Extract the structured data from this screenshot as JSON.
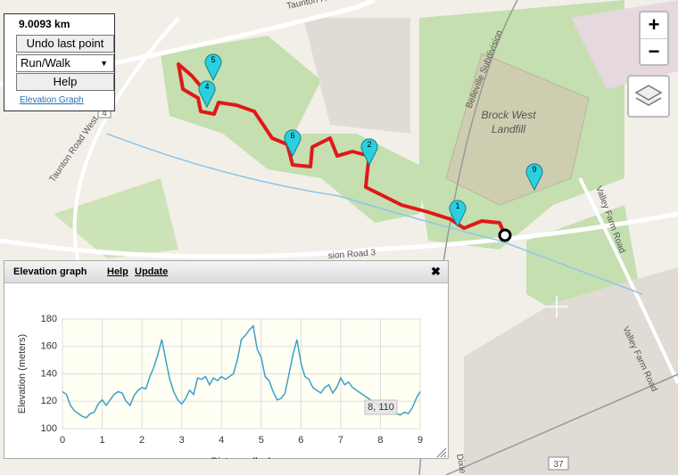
{
  "app": {
    "distance": "9.0093 km",
    "undo": "Undo last point",
    "mode": "Run/Walk",
    "help": "Help",
    "elevation_link": "Elevation Graph",
    "zoom_in": "+",
    "zoom_out": "−"
  },
  "map": {
    "labels": [
      "Taunton Road",
      "Taunton Road West",
      "Brock West",
      "Landfill",
      "Belleville Subdivision",
      "Valley Farm Road",
      "Valley Farm Road",
      "sion Road 3",
      "4",
      "37",
      "Dixie R"
    ],
    "markers": [
      "5",
      "4",
      "6",
      "2",
      "1",
      "9"
    ]
  },
  "panel": {
    "title": "Elevation graph",
    "help": "Help",
    "update": "Update",
    "close": "✖",
    "tooltip": "8, 110"
  },
  "chart_data": {
    "type": "line",
    "xlabel": "Distance (km)",
    "ylabel": "Elevation (meters)",
    "xlim": [
      0,
      9
    ],
    "xticks": [
      0,
      1,
      2,
      3,
      4,
      5,
      6,
      7,
      8,
      9
    ],
    "ylim": [
      100,
      180
    ],
    "yticks": [
      100,
      120,
      140,
      160,
      180
    ],
    "grid": true,
    "series": [
      {
        "name": "Elevation",
        "color": "#3ca0c8",
        "x": [
          0,
          0.1,
          0.2,
          0.3,
          0.4,
          0.5,
          0.6,
          0.7,
          0.8,
          0.9,
          1.0,
          1.1,
          1.2,
          1.3,
          1.4,
          1.5,
          1.6,
          1.7,
          1.8,
          1.9,
          2.0,
          2.1,
          2.2,
          2.3,
          2.4,
          2.5,
          2.6,
          2.7,
          2.8,
          2.9,
          3.0,
          3.1,
          3.2,
          3.3,
          3.4,
          3.5,
          3.6,
          3.7,
          3.8,
          3.9,
          4.0,
          4.1,
          4.2,
          4.3,
          4.4,
          4.5,
          4.6,
          4.7,
          4.8,
          4.9,
          5.0,
          5.1,
          5.2,
          5.3,
          5.4,
          5.5,
          5.6,
          5.7,
          5.8,
          5.9,
          6.0,
          6.1,
          6.2,
          6.3,
          6.4,
          6.5,
          6.6,
          6.7,
          6.8,
          6.9,
          7.0,
          7.1,
          7.2,
          7.3,
          7.4,
          7.5,
          7.6,
          7.7,
          7.8,
          7.9,
          8.0,
          8.1,
          8.2,
          8.3,
          8.4,
          8.5,
          8.6,
          8.7,
          8.8,
          8.9,
          9.0
        ],
        "values": [
          127,
          125,
          117,
          113,
          111,
          109,
          108,
          111,
          112,
          118,
          121,
          117,
          121,
          125,
          127,
          126,
          120,
          117,
          124,
          128,
          130,
          129,
          138,
          145,
          154,
          165,
          150,
          136,
          127,
          121,
          118,
          122,
          128,
          125,
          137,
          136,
          138,
          132,
          137,
          135,
          138,
          136,
          138,
          140,
          150,
          165,
          168,
          172,
          175,
          158,
          152,
          138,
          135,
          127,
          121,
          122,
          126,
          140,
          154,
          165,
          148,
          138,
          136,
          130,
          128,
          126,
          130,
          132,
          126,
          130,
          137,
          132,
          134,
          130,
          128,
          126,
          124,
          122,
          120,
          118,
          115,
          117,
          116,
          112,
          111,
          110,
          112,
          111,
          115,
          122,
          127
        ]
      }
    ]
  }
}
